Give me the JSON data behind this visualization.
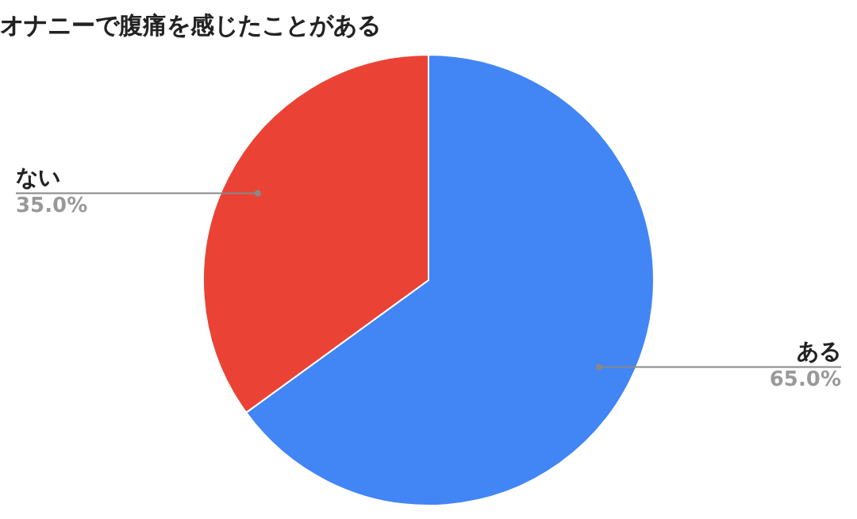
{
  "chart_data": {
    "type": "pie",
    "title": "オナニーで腹痛を感じたことがある",
    "categories": [
      "ある",
      "ない"
    ],
    "values": [
      65.0,
      35.0
    ],
    "colors": [
      "#4285f4",
      "#ea4335"
    ],
    "value_labels": [
      "65.0%",
      "35.0%"
    ],
    "legend": false
  }
}
